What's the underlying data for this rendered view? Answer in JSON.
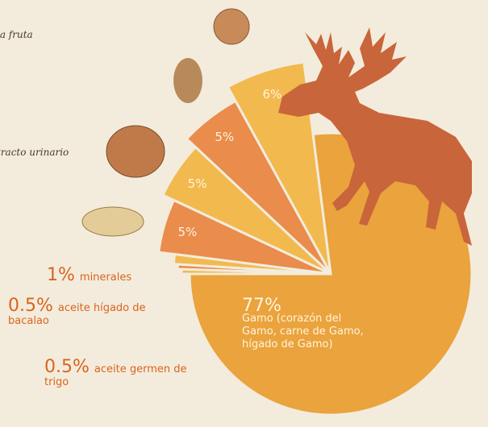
{
  "chart_data": {
    "type": "pie",
    "values": [
      6,
      5,
      5,
      5,
      1,
      0.5,
      0.5,
      77
    ],
    "value_labels": [
      "6%",
      "5%",
      "5%",
      "5%",
      "1%",
      "0.5%",
      "0.5%",
      "77%"
    ],
    "categories": [
      null,
      null,
      null,
      null,
      "minerales",
      "aceite hígado de bacalao",
      "aceite germen de trigo",
      "Gamo (corazón del Gamo, carne de Gamo, hígado de Gamo)"
    ],
    "colors": [
      "#f2b94e",
      "#e98c4c",
      "#f2b94e",
      "#e98c4c",
      "#f2b94e",
      "#e98c4c",
      "#f2b94e",
      "#eaa33d"
    ],
    "annotations": [
      "la fruta",
      "tracto urinario"
    ]
  }
}
